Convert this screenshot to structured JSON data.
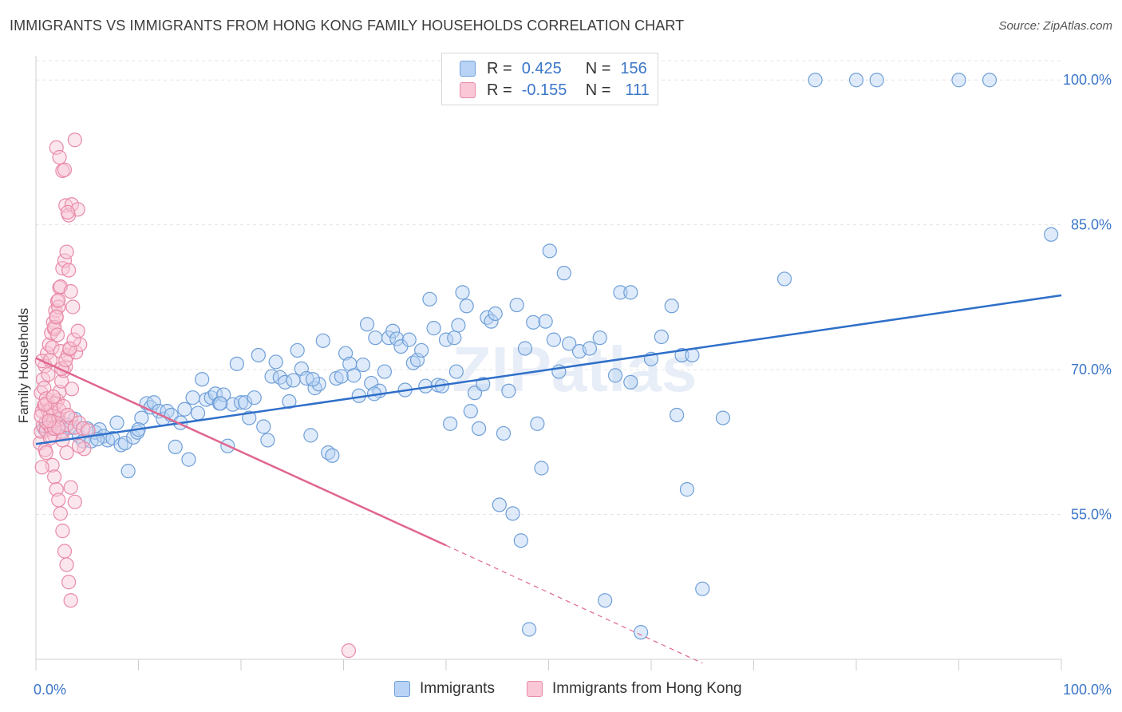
{
  "title": "IMMIGRANTS VS IMMIGRANTS FROM HONG KONG FAMILY HOUSEHOLDS CORRELATION CHART",
  "source": "Source: ZipAtlas.com",
  "watermark": "ZIPatlas",
  "legend_top": {
    "row1": {
      "r_label": "R =",
      "r_value": "0.425",
      "n_label": "N =",
      "n_value": "156"
    },
    "row2": {
      "r_label": "R =",
      "r_value": "-0.155",
      "n_label": "N =",
      "n_value": "111"
    }
  },
  "legend_bottom": {
    "immigrants": "Immigrants",
    "hong_kong": "Immigrants from Hong Kong"
  },
  "colors": {
    "blue": "#6f9fd8",
    "blue_fill": "#b8d3f5",
    "blue_line": "#2f6fc9",
    "pink": "#e88aa7",
    "pink_fill": "#f9c7d6",
    "pink_line": "#e0668f",
    "grid": "#e4e4e4",
    "tick_label": "#3b76c8"
  },
  "chart_data": {
    "type": "scatter",
    "title": "IMMIGRANTS VS IMMIGRANTS FROM HONG KONG FAMILY HOUSEHOLDS CORRELATION CHART",
    "xlabel": "",
    "ylabel": "Family Households",
    "xlim": [
      0,
      100
    ],
    "ylim": [
      40,
      102.5
    ],
    "x_tick_labels": [
      "0.0%",
      "100.0%"
    ],
    "y_ticks": [
      55,
      70,
      85,
      100
    ],
    "y_tick_labels": [
      "55.0%",
      "70.0%",
      "85.0%",
      "100.0%"
    ],
    "grid": true,
    "legend_position": "top-center",
    "series": [
      {
        "name": "Immigrants",
        "color": "#6f9fd8",
        "trend": {
          "x": [
            0,
            100
          ],
          "y": [
            62.3,
            77.7
          ]
        },
        "points": [
          [
            0.8,
            63.9
          ],
          [
            1.2,
            64.5
          ],
          [
            1.7,
            64.0
          ],
          [
            2.1,
            64.8
          ],
          [
            2.5,
            63.6
          ],
          [
            3.0,
            64.2
          ],
          [
            3.4,
            64.0
          ],
          [
            3.8,
            64.9
          ],
          [
            4.2,
            63.1
          ],
          [
            4.6,
            62.6
          ],
          [
            5.0,
            63.9
          ],
          [
            5.4,
            62.6
          ],
          [
            5.8,
            63.5
          ],
          [
            6.2,
            63.8
          ],
          [
            6.6,
            63.1
          ],
          [
            7.0,
            62.7
          ],
          [
            7.5,
            62.9
          ],
          [
            7.9,
            64.5
          ],
          [
            8.3,
            62.2
          ],
          [
            8.7,
            62.4
          ],
          [
            9.0,
            59.5
          ],
          [
            9.5,
            63.0
          ],
          [
            9.9,
            63.5
          ],
          [
            10.3,
            65.0
          ],
          [
            10.8,
            66.5
          ],
          [
            11.2,
            66.1
          ],
          [
            11.5,
            66.6
          ],
          [
            12.0,
            65.7
          ],
          [
            12.4,
            64.9
          ],
          [
            12.8,
            65.7
          ],
          [
            13.2,
            65.3
          ],
          [
            13.6,
            62.0
          ],
          [
            14.1,
            64.5
          ],
          [
            14.5,
            65.9
          ],
          [
            14.9,
            60.7
          ],
          [
            15.3,
            67.1
          ],
          [
            15.8,
            65.5
          ],
          [
            16.2,
            69.0
          ],
          [
            16.6,
            66.9
          ],
          [
            17.1,
            67.1
          ],
          [
            17.5,
            67.5
          ],
          [
            17.9,
            66.5
          ],
          [
            18.3,
            67.4
          ],
          [
            18.7,
            62.1
          ],
          [
            19.2,
            66.4
          ],
          [
            19.6,
            70.6
          ],
          [
            20.0,
            66.6
          ],
          [
            20.4,
            66.6
          ],
          [
            20.8,
            65.0
          ],
          [
            21.3,
            67.1
          ],
          [
            21.7,
            71.5
          ],
          [
            22.2,
            64.1
          ],
          [
            22.6,
            62.7
          ],
          [
            23.0,
            69.3
          ],
          [
            23.4,
            70.8
          ],
          [
            23.8,
            69.2
          ],
          [
            24.3,
            68.7
          ],
          [
            24.7,
            66.7
          ],
          [
            25.1,
            68.9
          ],
          [
            25.5,
            72.0
          ],
          [
            25.9,
            70.1
          ],
          [
            26.4,
            69.1
          ],
          [
            26.8,
            63.2
          ],
          [
            27.2,
            68.1
          ],
          [
            27.6,
            68.5
          ],
          [
            28.0,
            73.0
          ],
          [
            28.5,
            61.4
          ],
          [
            28.9,
            61.1
          ],
          [
            29.3,
            69.1
          ],
          [
            29.8,
            69.3
          ],
          [
            30.2,
            71.7
          ],
          [
            30.6,
            70.6
          ],
          [
            31.0,
            69.4
          ],
          [
            31.5,
            67.3
          ],
          [
            31.9,
            70.5
          ],
          [
            32.3,
            74.7
          ],
          [
            32.7,
            68.6
          ],
          [
            33.1,
            73.3
          ],
          [
            33.5,
            67.8
          ],
          [
            34.0,
            69.8
          ],
          [
            34.4,
            73.3
          ],
          [
            34.8,
            74.0
          ],
          [
            35.2,
            73.2
          ],
          [
            35.6,
            72.4
          ],
          [
            36.0,
            67.9
          ],
          [
            36.4,
            73.1
          ],
          [
            36.8,
            70.7
          ],
          [
            37.2,
            71.0
          ],
          [
            37.6,
            72.0
          ],
          [
            38.0,
            68.3
          ],
          [
            38.4,
            77.3
          ],
          [
            38.8,
            74.3
          ],
          [
            39.2,
            68.4
          ],
          [
            39.6,
            68.3
          ],
          [
            40.0,
            73.1
          ],
          [
            40.4,
            64.4
          ],
          [
            40.8,
            73.3
          ],
          [
            41.2,
            74.6
          ],
          [
            41.6,
            78.0
          ],
          [
            42.0,
            76.6
          ],
          [
            42.4,
            65.7
          ],
          [
            42.8,
            67.6
          ],
          [
            43.2,
            63.9
          ],
          [
            43.6,
            68.5
          ],
          [
            44.0,
            75.4
          ],
          [
            44.4,
            75.0
          ],
          [
            44.8,
            75.8
          ],
          [
            45.2,
            56.0
          ],
          [
            45.6,
            63.4
          ],
          [
            46.1,
            67.8
          ],
          [
            46.5,
            55.1
          ],
          [
            46.9,
            76.7
          ],
          [
            47.3,
            52.3
          ],
          [
            47.7,
            72.2
          ],
          [
            48.1,
            43.1
          ],
          [
            48.5,
            74.9
          ],
          [
            48.9,
            64.4
          ],
          [
            49.3,
            59.8
          ],
          [
            49.7,
            75.0
          ],
          [
            50.1,
            82.3
          ],
          [
            50.5,
            73.1
          ],
          [
            51.0,
            69.8
          ],
          [
            51.5,
            80.0
          ],
          [
            52.0,
            72.7
          ],
          [
            53.0,
            71.9
          ],
          [
            54.0,
            72.2
          ],
          [
            55.0,
            73.3
          ],
          [
            55.5,
            46.1
          ],
          [
            56.5,
            69.4
          ],
          [
            57.0,
            78.0
          ],
          [
            58.0,
            78.0
          ],
          [
            59.0,
            42.8
          ],
          [
            60.0,
            71.1
          ],
          [
            61.0,
            73.4
          ],
          [
            62.0,
            76.6
          ],
          [
            62.5,
            65.3
          ],
          [
            63.0,
            71.5
          ],
          [
            63.5,
            57.6
          ],
          [
            64.0,
            71.5
          ],
          [
            65.0,
            47.3
          ],
          [
            67.0,
            65.0
          ],
          [
            73.0,
            79.4
          ],
          [
            76.0,
            100.0
          ],
          [
            80.0,
            100.0
          ],
          [
            82.0,
            100.0
          ],
          [
            90.0,
            100.0
          ],
          [
            93.0,
            100.0
          ],
          [
            99.0,
            84.0
          ],
          [
            1.0,
            64.1
          ],
          [
            6.0,
            62.8
          ],
          [
            10.0,
            63.8
          ],
          [
            18.0,
            66.5
          ],
          [
            27.0,
            69.0
          ],
          [
            33.0,
            67.5
          ],
          [
            41.0,
            69.8
          ],
          [
            58.0,
            68.7
          ]
        ]
      },
      {
        "name": "Immigrants from Hong Kong",
        "color": "#e88aa7",
        "trend": {
          "x": [
            0,
            40
          ],
          "y": [
            71.2,
            51.8
          ],
          "dashed_to": {
            "x": 65,
            "y": 39.6
          }
        },
        "points": [
          [
            0.4,
            62.4
          ],
          [
            0.5,
            63.6
          ],
          [
            0.6,
            65.7
          ],
          [
            0.7,
            64.2
          ],
          [
            0.8,
            66.3
          ],
          [
            0.9,
            61.7
          ],
          [
            1.0,
            63.7
          ],
          [
            1.1,
            66.6
          ],
          [
            1.2,
            65.7
          ],
          [
            1.3,
            64.2
          ],
          [
            0.5,
            67.6
          ],
          [
            0.7,
            69.0
          ],
          [
            0.9,
            70.4
          ],
          [
            1.1,
            71.7
          ],
          [
            1.3,
            72.6
          ],
          [
            1.5,
            73.8
          ],
          [
            1.7,
            74.9
          ],
          [
            1.9,
            76.1
          ],
          [
            2.1,
            77.1
          ],
          [
            2.3,
            78.5
          ],
          [
            0.6,
            70.9
          ],
          [
            0.8,
            68.1
          ],
          [
            1.0,
            67.0
          ],
          [
            1.2,
            69.5
          ],
          [
            1.4,
            71.0
          ],
          [
            1.6,
            72.3
          ],
          [
            1.8,
            74.2
          ],
          [
            2.0,
            75.4
          ],
          [
            2.2,
            76.5
          ],
          [
            2.4,
            71.9
          ],
          [
            1.5,
            63.9
          ],
          [
            1.7,
            64.7
          ],
          [
            1.9,
            65.5
          ],
          [
            2.1,
            66.8
          ],
          [
            2.3,
            67.7
          ],
          [
            2.5,
            68.8
          ],
          [
            2.7,
            69.9
          ],
          [
            2.9,
            70.3
          ],
          [
            3.1,
            71.5
          ],
          [
            3.3,
            72.1
          ],
          [
            1.6,
            60.1
          ],
          [
            1.8,
            58.9
          ],
          [
            2.0,
            57.6
          ],
          [
            2.2,
            56.5
          ],
          [
            2.4,
            55.1
          ],
          [
            2.6,
            53.3
          ],
          [
            2.8,
            51.2
          ],
          [
            3.0,
            49.8
          ],
          [
            3.2,
            48.0
          ],
          [
            3.4,
            46.1
          ],
          [
            1.8,
            74.4
          ],
          [
            2.0,
            75.5
          ],
          [
            2.2,
            77.2
          ],
          [
            2.4,
            78.6
          ],
          [
            2.6,
            80.5
          ],
          [
            2.8,
            81.3
          ],
          [
            3.0,
            82.2
          ],
          [
            3.2,
            80.3
          ],
          [
            3.4,
            78.1
          ],
          [
            3.6,
            76.5
          ],
          [
            2.0,
            93.0
          ],
          [
            2.3,
            92.0
          ],
          [
            2.6,
            90.6
          ],
          [
            2.9,
            87.0
          ],
          [
            3.2,
            86.0
          ],
          [
            3.5,
            87.1
          ],
          [
            3.8,
            93.8
          ],
          [
            4.1,
            86.6
          ],
          [
            2.8,
            90.7
          ],
          [
            3.1,
            86.3
          ],
          [
            1.0,
            64.6
          ],
          [
            1.4,
            65.3
          ],
          [
            1.8,
            63.2
          ],
          [
            2.2,
            64.9
          ],
          [
            2.6,
            63.5
          ],
          [
            3.0,
            64.3
          ],
          [
            3.4,
            65.0
          ],
          [
            3.8,
            64.0
          ],
          [
            4.2,
            64.5
          ],
          [
            4.6,
            63.9
          ],
          [
            1.5,
            66.0
          ],
          [
            1.9,
            66.5
          ],
          [
            2.3,
            65.8
          ],
          [
            2.7,
            66.2
          ],
          [
            3.1,
            65.3
          ],
          [
            3.5,
            68.0
          ],
          [
            3.9,
            71.8
          ],
          [
            4.3,
            72.6
          ],
          [
            4.7,
            61.8
          ],
          [
            5.1,
            63.7
          ],
          [
            0.6,
            59.9
          ],
          [
            1.0,
            61.4
          ],
          [
            1.4,
            62.9
          ],
          [
            1.8,
            63.9
          ],
          [
            2.2,
            64.0
          ],
          [
            2.6,
            62.7
          ],
          [
            3.0,
            61.4
          ],
          [
            3.4,
            57.8
          ],
          [
            3.8,
            56.3
          ],
          [
            4.2,
            62.1
          ],
          [
            0.5,
            65.2
          ],
          [
            0.9,
            66.4
          ],
          [
            1.3,
            64.7
          ],
          [
            1.7,
            67.2
          ],
          [
            2.1,
            73.6
          ],
          [
            2.5,
            70.1
          ],
          [
            2.9,
            71.0
          ],
          [
            3.3,
            72.2
          ],
          [
            3.7,
            73.1
          ],
          [
            4.1,
            74.0
          ],
          [
            30.5,
            40.9
          ]
        ]
      }
    ]
  }
}
